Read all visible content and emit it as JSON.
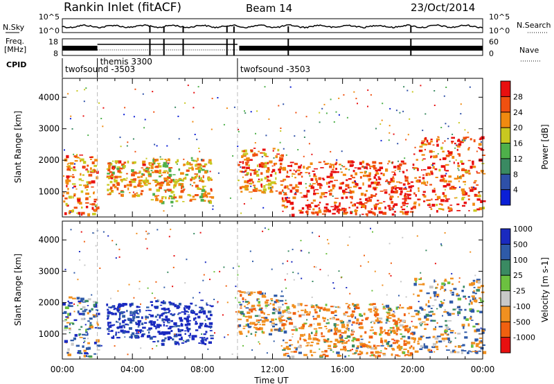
{
  "header": {
    "station": "Rankin Inlet (fitACF)",
    "beam": "Beam 14",
    "date": "23/Oct/2014"
  },
  "aux_labels": {
    "nsky": "N.Sky",
    "freq_line1": "Freq.",
    "freq_line2": "[MHz]",
    "cpid": "CPID",
    "nsearch": "N.Search",
    "nave": "Nave",
    "nsky_ticks": [
      "10^5",
      "10^0"
    ],
    "nsearch_ticks": [
      "10^5",
      "10^0"
    ],
    "freq_ticks": [
      "18",
      "8"
    ],
    "nave_ticks": [
      "60",
      "0"
    ]
  },
  "cpid_segments": [
    {
      "label": "twofsound -3503",
      "start_hour": 0
    },
    {
      "label": "themis 3300",
      "start_hour": 2
    },
    {
      "label": "twofsound -3503",
      "start_hour": 10
    }
  ],
  "colors": {
    "power": [
      "#0b1fd6",
      "#2e50a8",
      "#3a8a62",
      "#4eb04a",
      "#c8c820",
      "#f08a10",
      "#f05010",
      "#e81010"
    ],
    "velocity": [
      "#e81010",
      "#f06010",
      "#f09020",
      "#c8c8c8",
      "#6cc040",
      "#3a8a62",
      "#2e5aa8",
      "#1a2ac0"
    ]
  },
  "chart_data": [
    {
      "type": "heatmap",
      "name": "power",
      "xlabel": "",
      "ylabel": "Slant Range [km]",
      "xlim": [
        0,
        24
      ],
      "ylim": [
        200,
        4600
      ],
      "y_ticks": [
        "1000",
        "2000",
        "3000",
        "4000"
      ],
      "colorbar": {
        "label": "Power [dB]",
        "tick_labels": [
          "4",
          "8",
          "12",
          "16",
          "20",
          "24",
          "28"
        ],
        "range": [
          0,
          32
        ]
      },
      "echo_regions": [
        {
          "x": [
            0,
            2
          ],
          "y": [
            300,
            2200
          ],
          "value_db": 24
        },
        {
          "x": [
            2.5,
            5
          ],
          "y": [
            900,
            2000
          ],
          "value_db": 22
        },
        {
          "x": [
            5,
            8.5
          ],
          "y": [
            700,
            2100
          ],
          "value_db": 20
        },
        {
          "x": [
            10,
            12.5
          ],
          "y": [
            1000,
            2400
          ],
          "value_db": 24
        },
        {
          "x": [
            12.5,
            20
          ],
          "y": [
            300,
            2000
          ],
          "value_db": 28
        },
        {
          "x": [
            20,
            24
          ],
          "y": [
            400,
            2800
          ],
          "value_db": 26
        }
      ]
    },
    {
      "type": "heatmap",
      "name": "velocity",
      "xlabel": "Time UT",
      "ylabel": "Slant Range [km]",
      "xlim": [
        0,
        24
      ],
      "ylim": [
        200,
        4600
      ],
      "x_ticks": [
        "00:00",
        "04:00",
        "08:00",
        "12:00",
        "16:00",
        "20:00",
        "00:00"
      ],
      "y_ticks": [
        "1000",
        "2000",
        "3000",
        "4000"
      ],
      "colorbar": {
        "label": "Velocity [m s-1]",
        "tick_labels": [
          "-1000",
          "-500",
          "-100",
          "-25",
          "25",
          "100",
          "500",
          "1000"
        ],
        "range": [
          -1500,
          1500
        ]
      },
      "echo_regions": [
        {
          "x": [
            0,
            2
          ],
          "y": [
            300,
            2200
          ],
          "value_ms": 200
        },
        {
          "x": [
            2.5,
            5
          ],
          "y": [
            900,
            2000
          ],
          "value_ms": 600
        },
        {
          "x": [
            5,
            8.5
          ],
          "y": [
            700,
            2100
          ],
          "value_ms": 800
        },
        {
          "x": [
            10,
            12.5
          ],
          "y": [
            1000,
            2400
          ],
          "value_ms": -150
        },
        {
          "x": [
            12.5,
            20
          ],
          "y": [
            300,
            2000
          ],
          "value_ms": -300
        },
        {
          "x": [
            20,
            24
          ],
          "y": [
            400,
            2800
          ],
          "value_ms": 50
        }
      ]
    }
  ]
}
